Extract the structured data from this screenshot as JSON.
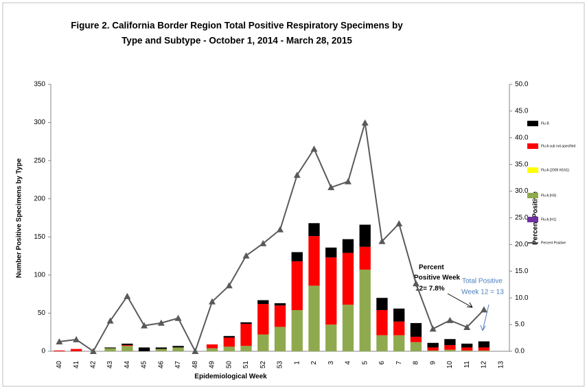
{
  "chart_data": {
    "type": "stacked-bar-line",
    "title": [
      "Figure 2. California Border Region Total Positive Respiratory Specimens by",
      "Type and Subtype - October 1, 2014 - March 28, 2015"
    ],
    "x_label": "Epidemiological Week",
    "y_label": "Number Positive Specimens by Type",
    "y2_label": "Percent Positive",
    "categories": [
      "40",
      "41",
      "42",
      "43",
      "44",
      "45",
      "46",
      "47",
      "48",
      "49",
      "50",
      "51",
      "52",
      "53",
      "1",
      "2",
      "3",
      "4",
      "5",
      "6",
      "7",
      "8",
      "9",
      "10",
      "11",
      "12",
      "13"
    ],
    "series": [
      {
        "name": "Flu B",
        "color": "#000000",
        "values": [
          0,
          0,
          0,
          1,
          2,
          5,
          2,
          2,
          0,
          0,
          2,
          2,
          5,
          3,
          12,
          17,
          13,
          18,
          29,
          16,
          17,
          18,
          6,
          8,
          5,
          8,
          0
        ]
      },
      {
        "name": "Flu A sub not-specified",
        "color": "#ff0000",
        "values": [
          1,
          3,
          0,
          0,
          1,
          0,
          0,
          0,
          0,
          5,
          12,
          29,
          40,
          28,
          64,
          65,
          88,
          68,
          30,
          33,
          18,
          7,
          4,
          6,
          4,
          4,
          0
        ]
      },
      {
        "name": "Flu A (2009 H1N1)",
        "color": "#ffff00",
        "values": [
          0,
          0,
          0,
          0,
          0,
          0,
          0,
          0,
          0,
          0,
          0,
          0,
          0,
          0,
          0,
          0,
          0,
          0,
          0,
          0,
          0,
          0,
          0,
          0,
          0,
          0,
          0
        ]
      },
      {
        "name": "Flu A (H3)",
        "color": "#8faa4e",
        "values": [
          0,
          0,
          0,
          4,
          7,
          0,
          3,
          5,
          0,
          4,
          6,
          7,
          22,
          32,
          54,
          86,
          35,
          61,
          107,
          21,
          21,
          12,
          1,
          2,
          1,
          1,
          0
        ]
      },
      {
        "name": "Flu A (H1)",
        "color": "#7030a0",
        "values": [
          0,
          0,
          0,
          0,
          0,
          0,
          0,
          0,
          0,
          0,
          0,
          0,
          0,
          0,
          0,
          0,
          0,
          0,
          0,
          0,
          0,
          0,
          0,
          0,
          0,
          0,
          0
        ]
      },
      {
        "name": "Percent Positive",
        "color": "#595959",
        "axis": "y2",
        "kind": "line",
        "values": [
          1.8,
          2.2,
          0,
          5.7,
          10.3,
          4.8,
          5.3,
          6.2,
          0,
          9.3,
          12.3,
          17.9,
          20.2,
          22.8,
          33.0,
          37.9,
          30.7,
          31.8,
          42.8,
          20.6,
          23.9,
          12.7,
          4.2,
          5.8,
          4.5,
          7.8,
          null
        ]
      }
    ],
    "ylim": [
      0,
      350
    ],
    "yticks": [
      0,
      50,
      100,
      150,
      200,
      250,
      300,
      350
    ],
    "y2lim": [
      0,
      50
    ],
    "y2ticks": [
      {
        "value": 0,
        "label": "0.0"
      },
      {
        "value": 5,
        "label": "5.0"
      },
      {
        "value": 10,
        "label": "10.0"
      },
      {
        "value": 15,
        "label": "15.0"
      },
      {
        "value": 20,
        "label": "20.0"
      },
      {
        "value": 25,
        "label": "25.0"
      },
      {
        "value": 30,
        "label": "30.0"
      },
      {
        "value": 35,
        "label": "35.0"
      },
      {
        "value": 40,
        "label": "40.0"
      },
      {
        "value": 45,
        "label": "45.0"
      },
      {
        "value": 50,
        "label": "50.0"
      }
    ],
    "annotations": [
      "Percent",
      "Positive Week",
      "12= 7.8%",
      "Total Positive",
      "Week  12 = 13"
    ],
    "legend": "right"
  }
}
